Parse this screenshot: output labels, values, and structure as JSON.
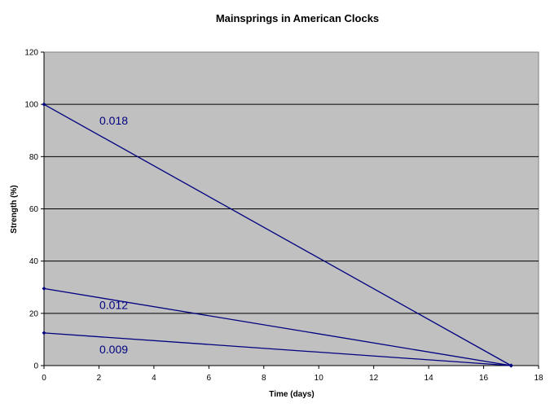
{
  "chart_data": {
    "type": "line",
    "title": "Mainsprings in American Clocks",
    "xlabel": "Time (days)",
    "ylabel": "Strength (%)",
    "xlim": [
      0,
      18
    ],
    "ylim": [
      0,
      120
    ],
    "xticks": [
      0,
      2,
      4,
      6,
      8,
      10,
      12,
      14,
      16,
      18
    ],
    "yticks": [
      0,
      20,
      40,
      60,
      80,
      100,
      120
    ],
    "grid": "horizontal",
    "plot_background": "#c0c0c0",
    "line_color": "#000080",
    "series": [
      {
        "name": "0.018",
        "x": [
          0,
          17
        ],
        "y": [
          100,
          0
        ]
      },
      {
        "name": "0.012",
        "x": [
          0,
          17
        ],
        "y": [
          29.5,
          0
        ]
      },
      {
        "name": "0.009",
        "x": [
          0,
          17
        ],
        "y": [
          12.5,
          0
        ]
      }
    ]
  }
}
